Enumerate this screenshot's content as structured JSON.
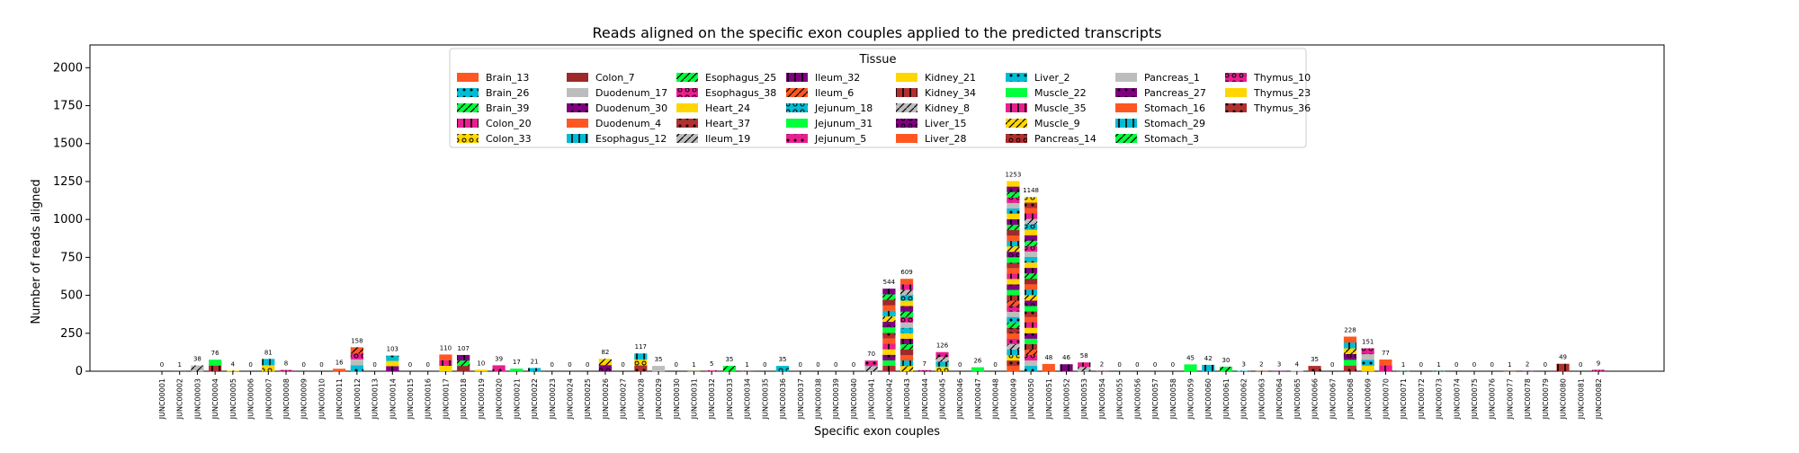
{
  "chart_data": {
    "type": "bar",
    "stacked": true,
    "title": "Reads aligned on the specific exon couples applied to the predicted transcripts",
    "xlabel": "Specific exon couples",
    "ylabel": "Number of reads aligned",
    "ylim": [
      0,
      2150
    ],
    "yticks": [
      0,
      250,
      500,
      750,
      1000,
      1250,
      1500,
      1750,
      2000
    ],
    "grid": false,
    "legend_title": "Tissue",
    "legend_placement": "top-center",
    "legend_columns": 8,
    "legend": [
      "Brain_13",
      "Brain_26",
      "Brain_39",
      "Colon_20",
      "Colon_33",
      "Colon_7",
      "Duodenum_17",
      "Duodenum_30",
      "Duodenum_4",
      "Esophagus_12",
      "Esophagus_25",
      "Esophagus_38",
      "Heart_24",
      "Heart_37",
      "Ileum_19",
      "Ileum_32",
      "Ileum_6",
      "Jejunum_18",
      "Jejunum_31",
      "Jejunum_5",
      "Kidney_21",
      "Kidney_34",
      "Kidney_8",
      "Liver_15",
      "Liver_28",
      "Liver_2",
      "Muscle_22",
      "Muscle_35",
      "Muscle_9",
      "Pancreas_14",
      "Pancreas_1",
      "Pancreas_27",
      "Stomach_16",
      "Stomach_29",
      "Stomach_3",
      "Thymus_10",
      "Thymus_23",
      "Thymus_36"
    ],
    "series_colors": [
      "#ff5722",
      "#00bcd4",
      "#00ff3c",
      "#e91e90",
      "#ffd600",
      "#9c2a2a",
      "#bdbdbd",
      "#800080",
      "#ff5722",
      "#00bcd4",
      "#00ff3c",
      "#e91e90",
      "#ffd600",
      "#b03030",
      "#bdbdbd",
      "#800080",
      "#ff5722",
      "#00bcd4",
      "#00ff3c",
      "#e91e90",
      "#ffd600",
      "#b03030",
      "#bdbdbd",
      "#800080",
      "#ff5722",
      "#00bcd4",
      "#00ff3c",
      "#e91e90",
      "#ffd600",
      "#b03030",
      "#bdbdbd",
      "#800080",
      "#ff5722",
      "#00bcd4",
      "#00ff3c",
      "#e91e90",
      "#ffd600",
      "#b03030"
    ],
    "categories": [
      "JUNC00001",
      "JUNC00002",
      "JUNC00003",
      "JUNC00004",
      "JUNC00005",
      "JUNC00006",
      "JUNC00007",
      "JUNC00008",
      "JUNC00009",
      "JUNC00010",
      "JUNC00011",
      "JUNC00012",
      "JUNC00013",
      "JUNC00014",
      "JUNC00015",
      "JUNC00016",
      "JUNC00017",
      "JUNC00018",
      "JUNC00019",
      "JUNC00020",
      "JUNC00021",
      "JUNC00022",
      "JUNC00023",
      "JUNC00024",
      "JUNC00025",
      "JUNC00026",
      "JUNC00027",
      "JUNC00028",
      "JUNC00029",
      "JUNC00030",
      "JUNC00031",
      "JUNC00032",
      "JUNC00033",
      "JUNC00034",
      "JUNC00035",
      "JUNC00036",
      "JUNC00037",
      "JUNC00038",
      "JUNC00039",
      "JUNC00040",
      "JUNC00041",
      "JUNC00042",
      "JUNC00043",
      "JUNC00044",
      "JUNC00045",
      "JUNC00046",
      "JUNC00047",
      "JUNC00048",
      "JUNC00049",
      "JUNC00050",
      "JUNC00051",
      "JUNC00052",
      "JUNC00053",
      "JUNC00054",
      "JUNC00055",
      "JUNC00056",
      "JUNC00057",
      "JUNC00058",
      "JUNC00059",
      "JUNC00060",
      "JUNC00061",
      "JUNC00062",
      "JUNC00063",
      "JUNC00064",
      "JUNC00065",
      "JUNC00066",
      "JUNC00067",
      "JUNC00068",
      "JUNC00069",
      "JUNC00070",
      "JUNC00071",
      "JUNC00072",
      "JUNC00073",
      "JUNC00074",
      "JUNC00075",
      "JUNC00076",
      "JUNC00077",
      "JUNC00078",
      "JUNC00079",
      "JUNC00080",
      "JUNC00081",
      "JUNC00082"
    ],
    "totals": [
      0,
      1,
      38,
      76,
      4,
      0,
      81,
      8,
      0,
      0,
      16,
      158,
      0,
      103,
      0,
      0,
      110,
      107,
      10,
      39,
      17,
      21,
      0,
      0,
      0,
      82,
      0,
      117,
      35,
      0,
      1,
      5,
      35,
      1,
      0,
      35,
      0,
      0,
      0,
      0,
      70,
      544,
      609,
      7,
      126,
      0,
      26,
      0,
      1253,
      1148,
      48,
      46,
      58,
      2,
      0,
      0,
      0,
      0,
      45,
      42,
      30,
      3,
      2,
      3,
      4,
      35,
      0,
      228,
      151,
      77,
      1,
      0,
      1,
      0,
      0,
      0,
      1,
      2,
      0,
      49,
      0,
      9
    ]
  }
}
